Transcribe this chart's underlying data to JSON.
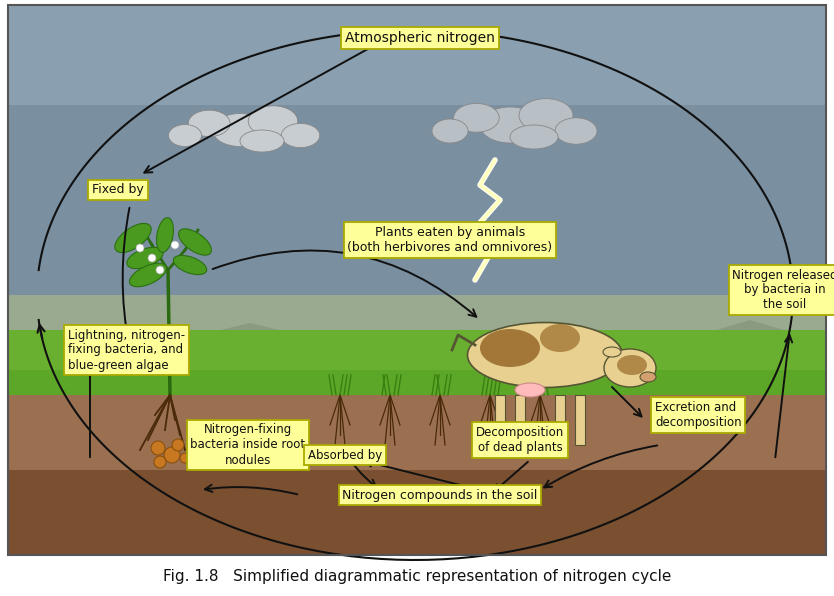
{
  "title": "Fig. 1.8   Simplified diagrammatic representation of nitrogen cycle",
  "title_fontsize": 11,
  "bg_color": "#ffffff",
  "label_bg_color": "#ffff99",
  "label_border_color": "#aaaa00",
  "arrow_color": "#111111",
  "text_color": "#111111",
  "labels": {
    "atmospheric_nitrogen": "Atmospheric nitrogen",
    "fixed_by": "Fixed by",
    "plants_eaten": "Plants eaten by animals\n(both herbivores and omnivores)",
    "lightning": "Lightning, nitrogen-\nfixing bacteria, and\nblue-green algae",
    "nitrogen_released": "Nitrogen released\nby bacteria in\nthe soil",
    "excretion": "Excretion and\ndecomposition",
    "nitrogen_fixing_bacteria": "Nitrogen-fixing\nbacteria inside root\nnodules",
    "absorbed_by": "Absorbed by",
    "decomposition": "Decomposition\nof dead plants",
    "nitrogen_compounds": "Nitrogen compounds in the soil"
  },
  "sky_dark": "#7a8fa0",
  "sky_mid": "#8fa5b5",
  "mountain_color": "#a0b090",
  "grass_color": "#7ab840",
  "grass_dark": "#5a9a20",
  "soil_top": "#9a7050",
  "soil_bottom": "#7a5535",
  "cloud_light": "#d5d8dc",
  "cloud_dark": "#b0b5ba"
}
